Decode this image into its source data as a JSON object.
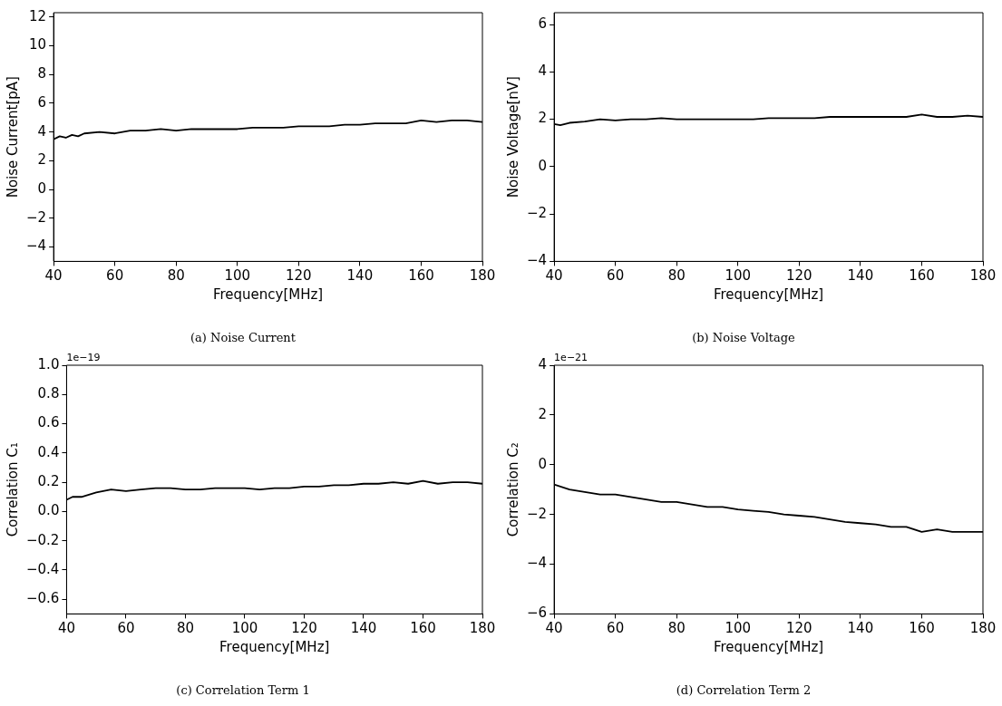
{
  "chart_data": [
    {
      "type": "line",
      "title": "(a) Noise Current",
      "xlabel": "Frequency[MHz]",
      "ylabel": "Noise Current[pA]",
      "xlim": [
        40,
        180
      ],
      "xticks": [
        40,
        60,
        80,
        100,
        120,
        140,
        160,
        180
      ],
      "ylim": [
        -5,
        12.3
      ],
      "yticks": [
        {
          "value": -4,
          "label": "−4"
        },
        {
          "value": -2,
          "label": "−2"
        },
        0,
        2,
        4,
        6,
        8,
        10,
        12
      ],
      "grid": false,
      "legend": false,
      "marker": "none",
      "line_style": "solid",
      "series": [
        {
          "color": "#000000",
          "x": [
            40,
            42,
            44,
            46,
            48,
            50,
            55,
            60,
            65,
            70,
            75,
            80,
            85,
            90,
            95,
            100,
            105,
            110,
            115,
            120,
            125,
            130,
            135,
            140,
            145,
            150,
            155,
            160,
            165,
            170,
            175,
            180
          ],
          "values": [
            3.5,
            3.7,
            3.6,
            3.8,
            3.7,
            3.9,
            4.0,
            3.9,
            4.1,
            4.1,
            4.2,
            4.1,
            4.2,
            4.2,
            4.2,
            4.2,
            4.3,
            4.3,
            4.3,
            4.4,
            4.4,
            4.4,
            4.5,
            4.5,
            4.6,
            4.6,
            4.6,
            4.8,
            4.7,
            4.8,
            4.8,
            4.7
          ]
        }
      ]
    },
    {
      "type": "line",
      "title": "(b) Noise Voltage",
      "xlabel": "Frequency[MHz]",
      "ylabel": "Noise Voltage[nV]",
      "xlim": [
        40,
        180
      ],
      "xticks": [
        40,
        60,
        80,
        100,
        120,
        140,
        160,
        180
      ],
      "ylim": [
        -4,
        6.5
      ],
      "yticks": [
        {
          "value": -4,
          "label": "−4"
        },
        {
          "value": -2,
          "label": "−2"
        },
        0,
        2,
        4,
        6
      ],
      "grid": false,
      "legend": false,
      "marker": "none",
      "line_style": "solid",
      "series": [
        {
          "color": "#000000",
          "x": [
            40,
            42,
            45,
            50,
            55,
            60,
            65,
            70,
            75,
            80,
            85,
            90,
            95,
            100,
            105,
            110,
            115,
            120,
            125,
            130,
            135,
            140,
            145,
            150,
            155,
            160,
            165,
            170,
            175,
            180
          ],
          "values": [
            1.8,
            1.75,
            1.85,
            1.9,
            2.0,
            1.95,
            2.0,
            2.0,
            2.05,
            2.0,
            2.0,
            2.0,
            2.0,
            2.0,
            2.0,
            2.05,
            2.05,
            2.05,
            2.05,
            2.1,
            2.1,
            2.1,
            2.1,
            2.1,
            2.1,
            2.2,
            2.1,
            2.1,
            2.15,
            2.1
          ]
        }
      ]
    },
    {
      "type": "line",
      "title": "(c) Correlation Term 1",
      "xlabel": "Frequency[MHz]",
      "ylabel": "Correlation C₁",
      "annotations": [
        "1e−19"
      ],
      "xlim": [
        40,
        180
      ],
      "xticks": [
        40,
        60,
        80,
        100,
        120,
        140,
        160,
        180
      ],
      "ylim": [
        -0.7,
        1.0
      ],
      "yticks": [
        {
          "value": -0.6,
          "label": "−0.6"
        },
        {
          "value": -0.4,
          "label": "−0.4"
        },
        {
          "value": -0.2,
          "label": "−0.2"
        },
        {
          "value": 0,
          "label": "0.0"
        },
        0.2,
        0.4,
        0.6,
        0.8,
        {
          "value": 1,
          "label": "1.0"
        }
      ],
      "grid": false,
      "legend": false,
      "marker": "none",
      "line_style": "solid",
      "series": [
        {
          "color": "#000000",
          "x": [
            40,
            42,
            45,
            50,
            55,
            60,
            65,
            70,
            75,
            80,
            85,
            90,
            95,
            100,
            105,
            110,
            115,
            120,
            125,
            130,
            135,
            140,
            145,
            150,
            155,
            160,
            165,
            170,
            175,
            180
          ],
          "values": [
            0.08,
            0.1,
            0.1,
            0.13,
            0.15,
            0.14,
            0.15,
            0.16,
            0.16,
            0.15,
            0.15,
            0.16,
            0.16,
            0.16,
            0.15,
            0.16,
            0.16,
            0.17,
            0.17,
            0.18,
            0.18,
            0.19,
            0.19,
            0.2,
            0.19,
            0.21,
            0.19,
            0.2,
            0.2,
            0.19
          ]
        }
      ]
    },
    {
      "type": "line",
      "title": "(d) Correlation Term 2",
      "xlabel": "Frequency[MHz]",
      "ylabel": "Correlation C₂",
      "annotations": [
        "1e−21"
      ],
      "xlim": [
        40,
        180
      ],
      "xticks": [
        40,
        60,
        80,
        100,
        120,
        140,
        160,
        180
      ],
      "ylim": [
        -6,
        4
      ],
      "yticks": [
        {
          "value": -6,
          "label": "−6"
        },
        {
          "value": -4,
          "label": "−4"
        },
        {
          "value": -2,
          "label": "−2"
        },
        0,
        2,
        4
      ],
      "grid": false,
      "legend": false,
      "marker": "none",
      "line_style": "solid",
      "series": [
        {
          "color": "#000000",
          "x": [
            40,
            45,
            50,
            55,
            60,
            65,
            70,
            75,
            80,
            85,
            90,
            95,
            100,
            105,
            110,
            115,
            120,
            125,
            130,
            135,
            140,
            145,
            150,
            155,
            160,
            165,
            170,
            175,
            180
          ],
          "values": [
            -0.8,
            -1.0,
            -1.1,
            -1.2,
            -1.2,
            -1.3,
            -1.4,
            -1.5,
            -1.5,
            -1.6,
            -1.7,
            -1.7,
            -1.8,
            -1.85,
            -1.9,
            -2.0,
            -2.05,
            -2.1,
            -2.2,
            -2.3,
            -2.35,
            -2.4,
            -2.5,
            -2.5,
            -2.7,
            -2.6,
            -2.7,
            -2.7,
            -2.7
          ]
        }
      ]
    }
  ]
}
